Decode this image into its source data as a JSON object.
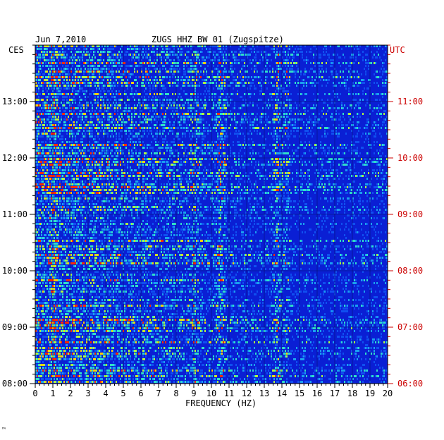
{
  "header": {
    "date": "Jun 7,2010",
    "station": "ZUGS HHZ BW 01 (Zugspitze)",
    "left_tz": "CES",
    "right_tz": "UTC"
  },
  "footer_mark": "™",
  "chart_data": {
    "type": "heatmap",
    "title": "ZUGS HHZ BW 01 (Zugspitze)",
    "subtitle": "Jun 7,2010",
    "xlabel": "FREQUENCY (HZ)",
    "ylabel_left": "CES",
    "ylabel_right": "UTC",
    "xlim": [
      0,
      20
    ],
    "x_ticks": [
      "0",
      "1",
      "2",
      "3",
      "4",
      "5",
      "6",
      "7",
      "8",
      "9",
      "10",
      "11",
      "12",
      "13",
      "14",
      "15",
      "16",
      "17",
      "18",
      "19",
      "20"
    ],
    "y_left_ticks": [
      "13:00",
      "12:00",
      "11:00",
      "10:00",
      "09:00",
      "08:00"
    ],
    "y_right_ticks": [
      "11:00",
      "10:00",
      "09:00",
      "08:00",
      "07:00",
      "06:00"
    ],
    "time_range_utc": [
      "06:00",
      "12:00"
    ],
    "grid": true,
    "colors": {
      "background": "#0a1fd4",
      "high": "#ff2a00",
      "mid": "#30e0c8",
      "left_labels": "#000000",
      "right_labels": "#cc0000"
    },
    "energy_bands_hz": [
      {
        "center": 1.0,
        "strength": 0.55
      },
      {
        "center": 9.0,
        "strength": 0.45
      },
      {
        "center": 10.5,
        "strength": 0.7
      },
      {
        "center": 13.7,
        "strength": 0.75
      },
      {
        "center": 14.2,
        "strength": 0.5
      }
    ]
  }
}
